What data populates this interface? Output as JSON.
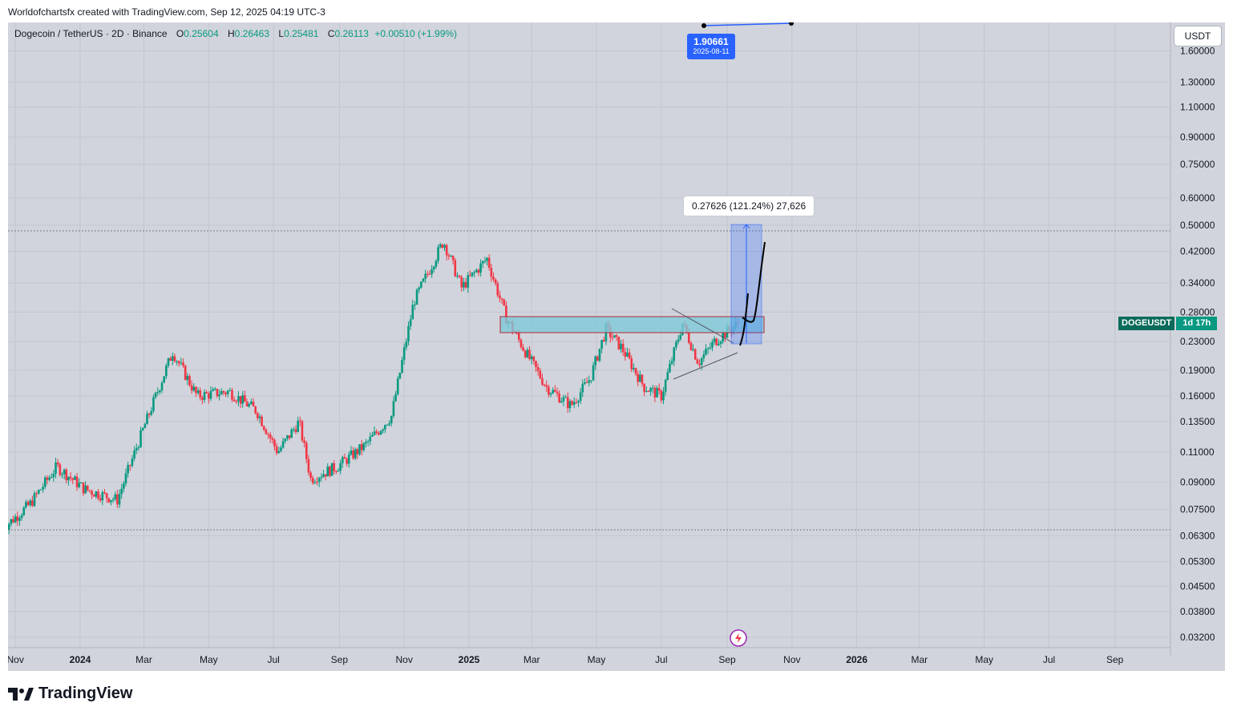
{
  "caption": "Worldofchartsfx created with TradingView.com, Sep 12, 2025 04:19 UTC-3",
  "legend": {
    "symbol": "Dogecoin / TetherUS · 2D · Binance",
    "o_label": "O",
    "o": "0.25604",
    "h_label": "H",
    "h": "0.26463",
    "l_label": "L",
    "l": "0.25481",
    "c_label": "C",
    "c": "0.26113",
    "change": "+0.00510 (+1.99%)"
  },
  "currency": "USDT",
  "target": {
    "price": "1.90661",
    "date": "2025-08-11"
  },
  "measure_label": "0.27626 (121.24%) 27,626",
  "ticker_tag": {
    "symbol": "DOGEUSDT",
    "countdown": "1d 17h"
  },
  "brand": "TradingView",
  "colors": {
    "up": "#089981",
    "down": "#f23645",
    "zone": "#7ec8d8",
    "measure": "#2962ff",
    "bg": "#d1d4dc"
  },
  "chart_data": {
    "type": "candlestick",
    "y_scale": "log",
    "y_ticks": [
      "1.60000",
      "1.30000",
      "1.10000",
      "0.90000",
      "0.75000",
      "0.60000",
      "0.50000",
      "0.42000",
      "0.34000",
      "0.28000",
      "0.23000",
      "0.19000",
      "0.16000",
      "0.13500",
      "0.11000",
      "0.09000",
      "0.07500",
      "0.06300",
      "0.05300",
      "0.04500",
      "0.03800",
      "0.03200"
    ],
    "x_ticks": [
      "Nov",
      "2024",
      "Mar",
      "May",
      "Jul",
      "Sep",
      "Nov",
      "2025",
      "Mar",
      "May",
      "Jul",
      "Sep",
      "Nov",
      "2026",
      "Mar",
      "May",
      "Jul",
      "Sep"
    ],
    "close_path": [
      [
        "2023-10-20",
        0.066
      ],
      [
        "2023-11-15",
        0.078
      ],
      [
        "2023-12-10",
        0.1
      ],
      [
        "2024-01-05",
        0.086
      ],
      [
        "2024-02-05",
        0.08
      ],
      [
        "2024-02-28",
        0.125
      ],
      [
        "2024-03-28",
        0.215
      ],
      [
        "2024-04-20",
        0.16
      ],
      [
        "2024-05-20",
        0.165
      ],
      [
        "2024-06-15",
        0.145
      ],
      [
        "2024-07-05",
        0.11
      ],
      [
        "2024-07-25",
        0.135
      ],
      [
        "2024-08-05",
        0.092
      ],
      [
        "2024-08-30",
        0.1
      ],
      [
        "2024-09-25",
        0.115
      ],
      [
        "2024-10-20",
        0.14
      ],
      [
        "2024-11-10",
        0.3
      ],
      [
        "2024-12-08",
        0.45
      ],
      [
        "2024-12-25",
        0.33
      ],
      [
        "2025-01-18",
        0.4
      ],
      [
        "2025-02-05",
        0.27
      ],
      [
        "2025-02-25",
        0.21
      ],
      [
        "2025-03-15",
        0.17
      ],
      [
        "2025-04-07",
        0.15
      ],
      [
        "2025-04-25",
        0.18
      ],
      [
        "2025-05-10",
        0.25
      ],
      [
        "2025-05-25",
        0.22
      ],
      [
        "2025-06-15",
        0.17
      ],
      [
        "2025-07-01",
        0.16
      ],
      [
        "2025-07-21",
        0.26
      ],
      [
        "2025-08-05",
        0.2
      ],
      [
        "2025-08-20",
        0.23
      ],
      [
        "2025-09-12",
        0.261
      ]
    ],
    "resistance_zone": [
      0.245,
      0.27
    ],
    "projection_target": 0.5
  }
}
